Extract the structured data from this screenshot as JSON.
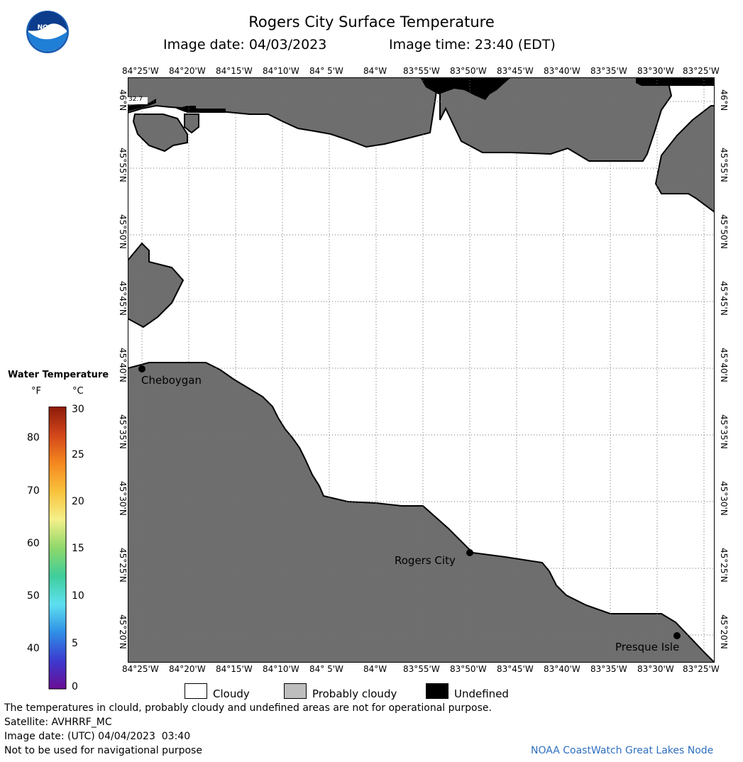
{
  "header": {
    "title": "Rogers City Surface Temperature",
    "image_date": "Image date: 04/03/2023",
    "image_time": "Image time: 23:40 (EDT)"
  },
  "logo": {
    "text": "NOAA"
  },
  "map": {
    "lon_labels": [
      "84°25'W",
      "84°20'W",
      "84°15'W",
      "84°10'W",
      "84° 5'W",
      "84°W",
      "83°55'W",
      "83°50'W",
      "83°45'W",
      "83°40'W",
      "83°35'W",
      "83°30'W",
      "83°25'W"
    ],
    "lat_labels": [
      "46°N",
      "45°55'N",
      "45°50'N",
      "45°45'N",
      "45°40'N",
      "45°35'N",
      "45°30'N",
      "45°25'N",
      "45°20'N"
    ],
    "cities": [
      {
        "name": "Cheboygan"
      },
      {
        "name": "Rogers City"
      },
      {
        "name": "Presque Isle"
      }
    ],
    "small_label": "32.7",
    "colors": {
      "cloudy": "#ffffff",
      "probably_cloudy": "#6e6e6e",
      "undefined": "#000000"
    }
  },
  "colorbar": {
    "title": "Water Temperature",
    "unit_f": "°F",
    "unit_c": "°C",
    "f_ticks": [
      "80",
      "70",
      "60",
      "50",
      "40"
    ],
    "c_ticks": [
      "30",
      "25",
      "20",
      "15",
      "10",
      "5",
      "0"
    ]
  },
  "legend": {
    "items": [
      "Cloudy",
      "Probably cloudy",
      "Undefined"
    ]
  },
  "footer": {
    "note": "The temperatures in clould, probably cloudy and undefined areas are not for operational purpose.",
    "satellite": "Satellite: AVHRRF_MC",
    "utc_date": "Image date: (UTC) 04/04/2023  03:40",
    "nav_warning": "Not to be used for navigational purpose",
    "credit": "NOAA CoastWatch Great Lakes Node"
  }
}
